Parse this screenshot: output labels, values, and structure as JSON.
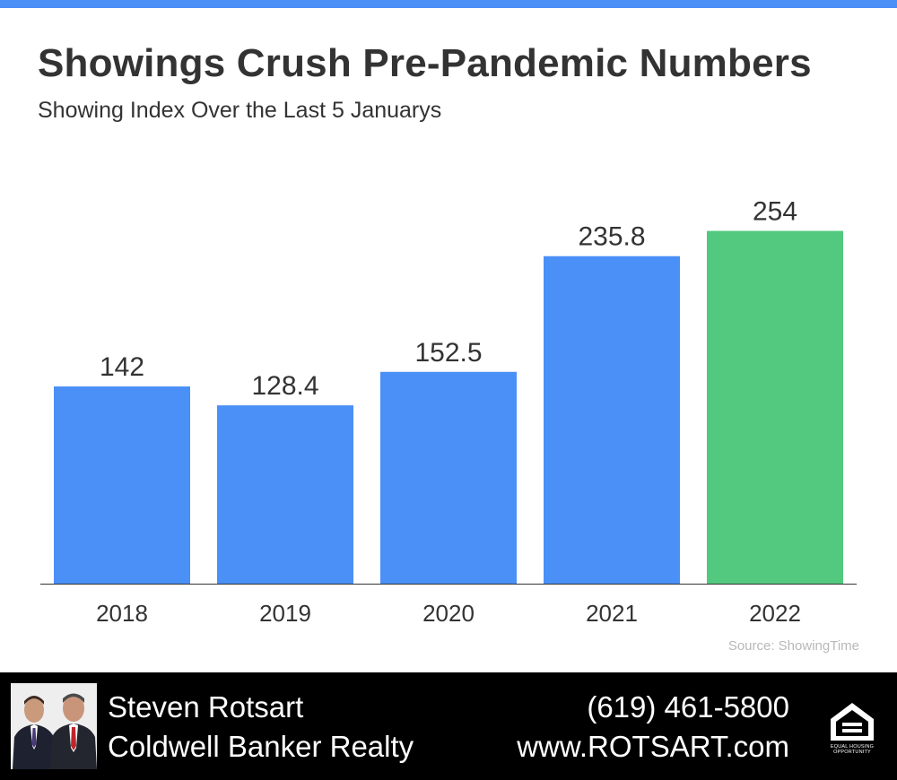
{
  "header": {
    "title": "Showings Crush Pre-Pandemic Numbers",
    "subtitle": "Showing Index Over the Last 5 Januarys"
  },
  "chart_data": {
    "type": "bar",
    "categories": [
      "2018",
      "2019",
      "2020",
      "2021",
      "2022"
    ],
    "values": [
      142,
      128.4,
      152.5,
      235.8,
      254
    ],
    "value_labels": [
      "142",
      "128.4",
      "152.5",
      "235.8",
      "254"
    ],
    "bar_colors": [
      "#4a90f7",
      "#4a90f7",
      "#4a90f7",
      "#4a90f7",
      "#52c97e"
    ],
    "title": "Showings Crush Pre-Pandemic Numbers",
    "subtitle": "Showing Index Over the Last 5 Januarys",
    "xlabel": "",
    "ylabel": "",
    "ylim": [
      0,
      280
    ],
    "grid": false,
    "legend": "none"
  },
  "source": "Source: ShowingTime",
  "footer": {
    "agent_name": "Steven Rotsart",
    "company": "Coldwell Banker Realty",
    "phone": "(619) 461-5800",
    "website": "www.ROTSART.com",
    "badge_text": "EQUAL HOUSING OPPORTUNITY",
    "photo_icon": "agents-photo-icon",
    "badge_icon": "equal-housing-house-icon"
  },
  "colors": {
    "accent": "#4a90f7",
    "highlight": "#52c97e",
    "text": "#333333",
    "footer_bg": "#000000"
  }
}
